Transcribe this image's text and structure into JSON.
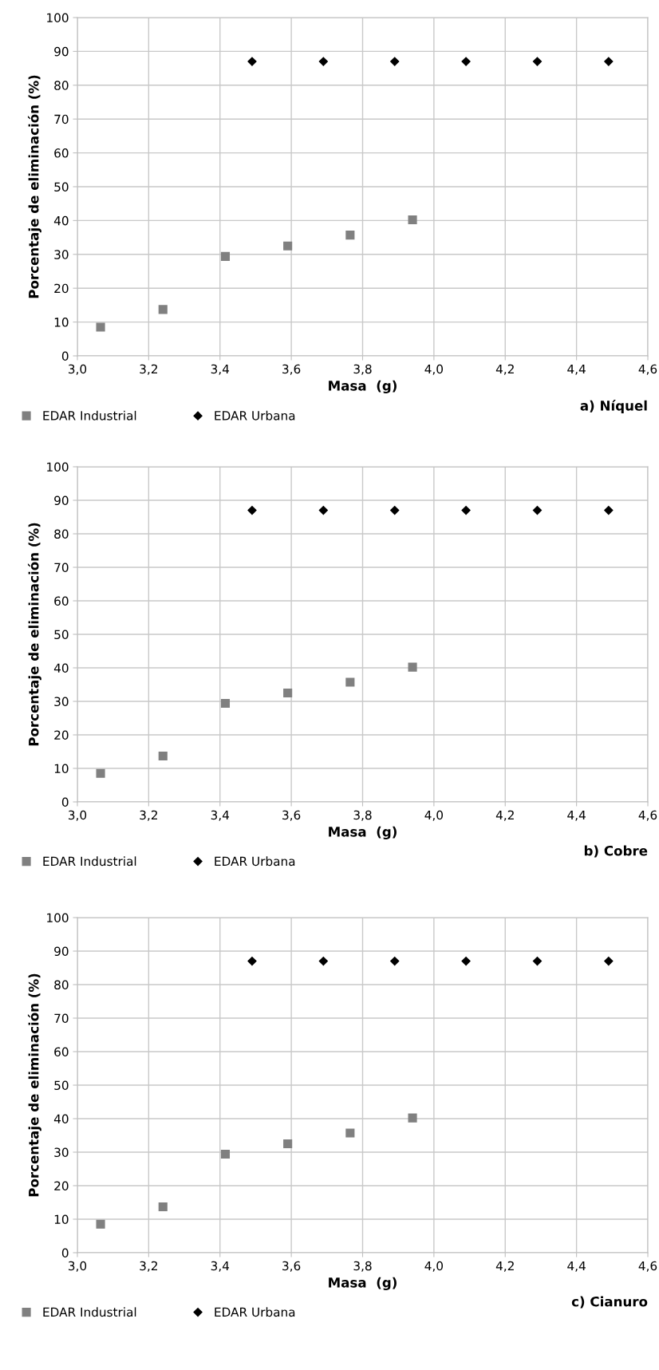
{
  "chart_data": [
    {
      "type": "scatter",
      "title": "a) Níquel",
      "xlabel": "Masa  (g)",
      "ylabel": "Porcentaje de eliminación (%)",
      "xlim": [
        3.0,
        4.6
      ],
      "xticks": [
        {
          "value": 3.0,
          "label": "3,0"
        },
        {
          "value": 3.2,
          "label": "3,2"
        },
        {
          "value": 3.4,
          "label": "3,4"
        },
        {
          "value": 3.6,
          "label": "3,6"
        },
        {
          "value": 3.8,
          "label": "3,8"
        },
        {
          "value": 4.0,
          "label": "4,0"
        },
        {
          "value": 4.2,
          "label": "4,2"
        },
        {
          "value": 4.4,
          "label": "4,4"
        },
        {
          "value": 4.6,
          "label": "4,6"
        }
      ],
      "ylim": [
        0,
        100
      ],
      "yticks": [
        0,
        10,
        20,
        30,
        40,
        50,
        60,
        70,
        80,
        90,
        100
      ],
      "grid": true,
      "legend": "bottom left",
      "series": [
        {
          "name": "EDAR Industrial",
          "color": "#808080",
          "marker": "square",
          "x": [
            3.065,
            3.24,
            3.415,
            3.59,
            3.765,
            3.94
          ],
          "values": [
            8.5,
            13.7,
            29.4,
            32.5,
            35.7,
            40.2
          ]
        },
        {
          "name": "EDAR Urbana",
          "color": "#000000",
          "marker": "diamond",
          "x": [
            3.49,
            3.69,
            3.89,
            4.09,
            4.29,
            4.49
          ],
          "values": [
            87,
            87,
            87,
            87,
            87,
            87
          ]
        }
      ]
    },
    {
      "type": "scatter",
      "title": "b) Cobre",
      "xlabel": "Masa  (g)",
      "ylabel": "Porcentaje de eliminación (%)",
      "xlim": [
        3.0,
        4.6
      ],
      "xticks": [
        {
          "value": 3.0,
          "label": "3,0"
        },
        {
          "value": 3.2,
          "label": "3,2"
        },
        {
          "value": 3.4,
          "label": "3,4"
        },
        {
          "value": 3.6,
          "label": "3,6"
        },
        {
          "value": 3.8,
          "label": "3,8"
        },
        {
          "value": 4.0,
          "label": "4,0"
        },
        {
          "value": 4.2,
          "label": "4,2"
        },
        {
          "value": 4.4,
          "label": "4,4"
        },
        {
          "value": 4.6,
          "label": "4,6"
        }
      ],
      "ylim": [
        0,
        100
      ],
      "yticks": [
        0,
        10,
        20,
        30,
        40,
        50,
        60,
        70,
        80,
        90,
        100
      ],
      "grid": true,
      "legend": "bottom left",
      "series": [
        {
          "name": "EDAR Industrial",
          "color": "#808080",
          "marker": "square",
          "x": [
            3.065,
            3.24,
            3.415,
            3.59,
            3.765,
            3.94
          ],
          "values": [
            8.5,
            13.7,
            29.4,
            32.5,
            35.7,
            40.2
          ]
        },
        {
          "name": "EDAR Urbana",
          "color": "#000000",
          "marker": "diamond",
          "x": [
            3.49,
            3.69,
            3.89,
            4.09,
            4.29,
            4.49
          ],
          "values": [
            87,
            87,
            87,
            87,
            87,
            87
          ]
        }
      ]
    },
    {
      "type": "scatter",
      "title": "c) Cianuro",
      "xlabel": "Masa  (g)",
      "ylabel": "Porcentaje de eliminación (%)",
      "xlim": [
        3.0,
        4.6
      ],
      "xticks": [
        {
          "value": 3.0,
          "label": "3,0"
        },
        {
          "value": 3.2,
          "label": "3,2"
        },
        {
          "value": 3.4,
          "label": "3,4"
        },
        {
          "value": 3.6,
          "label": "3,6"
        },
        {
          "value": 3.8,
          "label": "3,8"
        },
        {
          "value": 4.0,
          "label": "4,0"
        },
        {
          "value": 4.2,
          "label": "4,2"
        },
        {
          "value": 4.4,
          "label": "4,4"
        },
        {
          "value": 4.6,
          "label": "4,6"
        }
      ],
      "ylim": [
        0,
        100
      ],
      "yticks": [
        0,
        10,
        20,
        30,
        40,
        50,
        60,
        70,
        80,
        90,
        100
      ],
      "grid": true,
      "legend": "bottom left",
      "series": [
        {
          "name": "EDAR Industrial",
          "color": "#808080",
          "marker": "square",
          "x": [
            3.065,
            3.24,
            3.415,
            3.59,
            3.765,
            3.94
          ],
          "values": [
            8.5,
            13.7,
            29.4,
            32.5,
            35.7,
            40.2
          ]
        },
        {
          "name": "EDAR Urbana",
          "color": "#000000",
          "marker": "diamond",
          "x": [
            3.49,
            3.69,
            3.89,
            4.09,
            4.29,
            4.49
          ],
          "values": [
            87,
            87,
            87,
            87,
            87,
            87
          ]
        }
      ]
    }
  ]
}
